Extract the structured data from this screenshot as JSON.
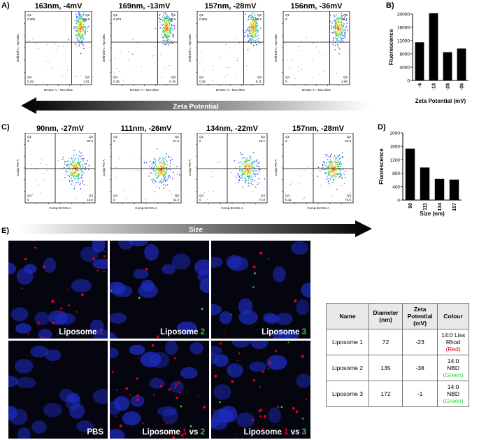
{
  "panels": {
    "A": {
      "letter": "A)",
      "flow_plots": [
        {
          "title": "163nm, -4mV",
          "ylabel": "Defined A :: Sp DBC",
          "xlabel": "BV421-A :: Nuc Blue",
          "q1_label": "Q1",
          "q1_value": "0.065",
          "q2_label": "Q2",
          "q2_value": "96.8",
          "q3_label": "Q3",
          "q3_value": "2.91",
          "q4_label": "Q4",
          "q4_value": "0.29"
        },
        {
          "title": "169nm, -13mV",
          "ylabel": "Defined A :: Sp DBC",
          "xlabel": "BV421-A :: Nuc Blue",
          "q1_label": "Q1",
          "q1_value": "0.074",
          "q2_label": "Q2",
          "q2_value": "99.8",
          "q3_label": "Q3",
          "q3_value": "0.16",
          "q4_label": "Q4",
          "q4_value": "0.36"
        },
        {
          "title": "157nm, -28mV",
          "ylabel": "Defined A :: Sp DBC",
          "xlabel": "BV421-A :: Nuc Blue",
          "q1_label": "Q1",
          "q1_value": "0.065",
          "q2_label": "Q2",
          "q2_value": "94.6",
          "q3_label": "Q3",
          "q3_value": "5.11",
          "q4_label": "Q4",
          "q4_value": "0.36"
        },
        {
          "title": "156nm, -36mV",
          "ylabel": "Defined A :: Sp DBC",
          "xlabel": "BV421-A :: Nuc Blue",
          "q1_label": "Q1",
          "q1_value": "0",
          "q2_label": "Q2",
          "q2_value": "95.1",
          "q3_label": "Q3",
          "q3_value": "4.86",
          "q4_label": "Q4",
          "q4_value": "0"
        }
      ],
      "arrow_label": "Zeta Potential"
    },
    "C": {
      "letter": "C)",
      "flow_plots": [
        {
          "title": "90nm, -27mV",
          "ylabel": "Comp-PE-A",
          "xlabel": "Comp-BV421-A",
          "q1_label": "Q1",
          "q1_value": "0",
          "q2_label": "Q2",
          "q2_value": "83.0",
          "q3_label": "Q3",
          "q3_value": "16.8",
          "q4_label": "Q4",
          "q4_value": "0"
        },
        {
          "title": "111nm, -26mV",
          "ylabel": "Comp-PE-A",
          "xlabel": "Comp-BV421-A",
          "q1_label": "Q1",
          "q1_value": "0",
          "q2_label": "Q2",
          "q2_value": "57.6",
          "q3_label": "Q3",
          "q3_value": "42.4",
          "q4_label": "Q4",
          "q4_value": "0"
        },
        {
          "title": "134nm, -22mV",
          "ylabel": "Comp-PE-A",
          "xlabel": "Comp-BV421-A",
          "q1_label": "Q1",
          "q1_value": "0",
          "q2_label": "Q2",
          "q2_value": "25.1",
          "q3_label": "Q3",
          "q3_value": "74.9",
          "q4_label": "Q4",
          "q4_value": "0"
        },
        {
          "title": "157nm, -28mV",
          "ylabel": "Comp-PE-A",
          "xlabel": "Comp-BV421-A",
          "q1_label": "Q1",
          "q1_value": "0",
          "q2_label": "Q2",
          "q2_value": "23.3",
          "q3_label": "Q3",
          "q3_value": "76.5",
          "q4_label": "Q4",
          "q4_value": "0.11"
        }
      ],
      "arrow_label": "Size"
    },
    "B": {
      "letter": "B)"
    },
    "D": {
      "letter": "D)"
    },
    "E": {
      "letter": "E)",
      "images": [
        {
          "name": "Liposome ",
          "num": "1",
          "num_color": "red"
        },
        {
          "name": "Liposome ",
          "num": "2",
          "num_color": "green"
        },
        {
          "name": "Liposome ",
          "num": "3",
          "num_color": "green"
        },
        {
          "name": "PBS"
        },
        {
          "name": "Liposome ",
          "num": "1",
          "num_color": "red",
          "mid": " vs ",
          "num2": "2",
          "num2_color": "green"
        },
        {
          "name": "Liposome ",
          "num": "1",
          "num_color": "red",
          "mid": " vs ",
          "num2": "3",
          "num2_color": "green"
        }
      ],
      "table": {
        "headers": [
          "Name",
          "Diameter (nm)",
          "Zeta Potential (mV)",
          "Colour"
        ],
        "rows": [
          {
            "name": "Liposome 1",
            "diameter": "72",
            "zeta": "-23",
            "colour": "14:0 Liss Rhod",
            "colour_tag": "(Red)",
            "tag_color": "red"
          },
          {
            "name": "Liposome 2",
            "diameter": "135",
            "zeta": "-38",
            "colour": "14:0 NBD",
            "colour_tag": "(Green)",
            "tag_color": "green"
          },
          {
            "name": "Liposome 3",
            "diameter": "172",
            "zeta": "-1",
            "colour": "14:0 NBD",
            "colour_tag": "(Green)",
            "tag_color": "green"
          }
        ]
      }
    }
  },
  "chart_data": [
    {
      "type": "bar",
      "panel": "B",
      "categories": [
        "-4",
        "-13",
        "-28",
        "-36"
      ],
      "values": [
        11500,
        20200,
        8500,
        9600
      ],
      "xlabel": "Zeta Potential (mV)",
      "ylabel": "Fluorescence",
      "ylim": [
        0,
        20000
      ],
      "yticks": [
        0,
        4000,
        8000,
        12000,
        16000,
        20000
      ],
      "grid": false
    },
    {
      "type": "bar",
      "panel": "D",
      "categories": [
        "90",
        "111",
        "134",
        "157"
      ],
      "values": [
        1530,
        970,
        630,
        610
      ],
      "xlabel": "Size (nm)",
      "ylabel": "Fluorescence",
      "ylim": [
        0,
        2000
      ],
      "yticks": [
        0,
        400,
        800,
        1200,
        1600,
        2000
      ],
      "grid": false
    }
  ],
  "colors": {
    "red": "#e0001a",
    "green": "#2fd12f",
    "nucleus": "#1d2bc0",
    "bar": "#000000"
  }
}
